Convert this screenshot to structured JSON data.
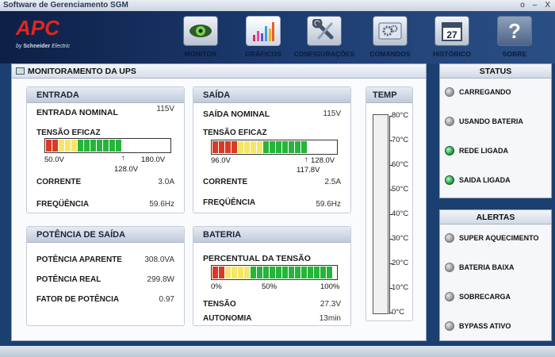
{
  "window": {
    "title": "Software de Gerenciamento SGM",
    "controls": [
      "o",
      "–",
      "X"
    ]
  },
  "brand": {
    "logo": "APC",
    "byline_prefix": "by",
    "byline_brand": "Schneider",
    "byline_suffix": "Electric",
    "logo_color": "#e3261f"
  },
  "nav": [
    {
      "label": "MONITOR",
      "icon": "eye-icon"
    },
    {
      "label": "GRÁFICOS",
      "icon": "bar-chart-icon"
    },
    {
      "label": "CONFIGURAÇÕES",
      "icon": "wrench-icon"
    },
    {
      "label": "COMANDOS",
      "icon": "gears-icon"
    },
    {
      "label": "HISTÓRICO",
      "icon": "calendar-icon",
      "day": "27"
    },
    {
      "label": "SOBRE",
      "icon": "help-icon",
      "glyph": "?"
    }
  ],
  "main": {
    "title": "MONITORAMENTO DA UPS"
  },
  "entrada": {
    "title": "ENTRADA",
    "nominal_label": "ENTRADA NOMINAL",
    "nominal_value": "115V",
    "tensao_label": "TENSÃO EFICAZ",
    "bar_min": "50.0V",
    "bar_max": "180.0V",
    "bar_current": "128.0V",
    "bar_current_fraction": 0.6,
    "corrente_label": "CORRENTE",
    "corrente_value": "3.0A",
    "freq_label": "FREQÜÊNCIA",
    "freq_value": "59.6Hz"
  },
  "saida": {
    "title": "SAÍDA",
    "nominal_label": "SAÍDA NOMINAL",
    "nominal_value": "115V",
    "tensao_label": "TENSÃO EFICAZ",
    "bar_min": "96.0V",
    "bar_max": "128.0V",
    "bar_current": "117.8V",
    "bar_current_fraction": 0.68,
    "corrente_label": "CORRENTE",
    "corrente_value": "2.5A",
    "freq_label": "FREQÜÊNCIA",
    "freq_value": "59.6Hz"
  },
  "potencia": {
    "title": "POTÊNCIA DE SAÍDA",
    "aparente_label": "POTÊNCIA APARENTE",
    "aparente_value": "308.0VA",
    "real_label": "POTÊNCIA REAL",
    "real_value": "299.8W",
    "fator_label": "FATOR DE POTÊNCIA",
    "fator_value": "0.97"
  },
  "bateria": {
    "title": "BATERIA",
    "percentual_label": "PERCENTUAL DA TENSÃO",
    "bar_ticks": [
      "0%",
      "50%",
      "100%"
    ],
    "tensao_label": "TENSÃO",
    "tensao_value": "27.3V",
    "autonomia_label": "AUTONOMIA",
    "autonomia_value": "13min"
  },
  "temp": {
    "title": "TEMP",
    "scale": [
      "80°C",
      "70°C",
      "60°C",
      "50°C",
      "40°C",
      "30°C",
      "20°C",
      "10°C",
      "0°C"
    ]
  },
  "status": {
    "title": "STATUS",
    "items": [
      {
        "label": "CARREGANDO",
        "state": "gray"
      },
      {
        "label": "USANDO BATERIA",
        "state": "gray"
      },
      {
        "label": "REDE LIGADA",
        "state": "green"
      },
      {
        "label": "SAIDA LIGADA",
        "state": "green"
      }
    ]
  },
  "alertas": {
    "title": "ALERTAS",
    "items": [
      {
        "label": "SUPER AQUECIMENTO",
        "state": "gray"
      },
      {
        "label": "BATERIA BAIXA",
        "state": "gray"
      },
      {
        "label": "SOBRECARGA",
        "state": "gray"
      },
      {
        "label": "BYPASS ATIVO",
        "state": "gray"
      }
    ]
  },
  "colors": {
    "red": "#d93a26",
    "yellow": "#f5e66a",
    "green": "#26b43a",
    "header_bg": "#1c3b70"
  }
}
